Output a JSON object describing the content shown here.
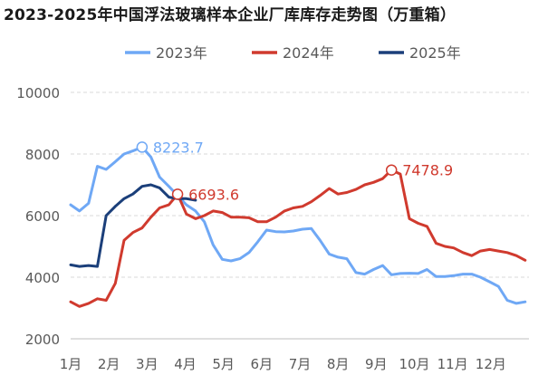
{
  "chart_data": {
    "type": "line",
    "title": "2023-2025年中国浮法玻璃样本企业厂库库存走势图（万重箱）",
    "ylim": [
      2000,
      10000
    ],
    "yticks": [
      2000,
      4000,
      6000,
      8000,
      10000
    ],
    "xlim": [
      1,
      13
    ],
    "xticks": [
      "1月",
      "2月",
      "3月",
      "4月",
      "5月",
      "6月",
      "7月",
      "8月",
      "9月",
      "10月",
      "11月",
      "12月"
    ],
    "grid": "horizontal dashed",
    "legend_position": "top",
    "series": [
      {
        "name": "2023年",
        "color": "#6fa8f5",
        "x": [
          1.0,
          1.23,
          1.47,
          1.7,
          1.93,
          2.17,
          2.4,
          2.63,
          2.87,
          3.1,
          3.33,
          3.57,
          3.8,
          4.03,
          4.27,
          4.5,
          4.73,
          4.97,
          5.2,
          5.43,
          5.67,
          5.9,
          6.13,
          6.37,
          6.6,
          6.83,
          7.07,
          7.3,
          7.53,
          7.77,
          8.0,
          8.23,
          8.47,
          8.7,
          8.93,
          9.17,
          9.4,
          9.63,
          9.87,
          10.1,
          10.33,
          10.57,
          10.8,
          11.03,
          11.27,
          11.5,
          11.73,
          11.97,
          12.2,
          12.43,
          12.67,
          12.9
        ],
        "values": [
          6350,
          6150,
          6400,
          7600,
          7500,
          7750,
          8000,
          8100,
          8223.7,
          7900,
          7250,
          6950,
          6650,
          6350,
          6150,
          5800,
          5050,
          4580,
          4530,
          4600,
          4800,
          5150,
          5530,
          5480,
          5470,
          5500,
          5560,
          5580,
          5200,
          4750,
          4650,
          4600,
          4150,
          4100,
          4250,
          4380,
          4080,
          4120,
          4130,
          4120,
          4250,
          4020,
          4020,
          4050,
          4100,
          4100,
          4000,
          3850,
          3700,
          3250,
          3150,
          3200
        ]
      },
      {
        "name": "2024年",
        "color": "#d03a2e",
        "x": [
          1.0,
          1.23,
          1.47,
          1.7,
          1.93,
          2.17,
          2.4,
          2.63,
          2.87,
          3.1,
          3.33,
          3.57,
          3.8,
          4.03,
          4.27,
          4.5,
          4.73,
          4.97,
          5.2,
          5.43,
          5.67,
          5.9,
          6.13,
          6.37,
          6.6,
          6.83,
          7.07,
          7.3,
          7.53,
          7.77,
          8.0,
          8.23,
          8.47,
          8.7,
          8.93,
          9.17,
          9.4,
          9.63,
          9.87,
          10.1,
          10.33,
          10.57,
          10.8,
          11.03,
          11.27,
          11.5,
          11.73,
          11.97,
          12.2,
          12.43,
          12.67,
          12.9
        ],
        "values": [
          3200,
          3050,
          3150,
          3300,
          3250,
          3800,
          5200,
          5450,
          5600,
          5950,
          6250,
          6350,
          6693.6,
          6050,
          5900,
          6000,
          6150,
          6100,
          5950,
          5950,
          5930,
          5800,
          5800,
          5950,
          6150,
          6250,
          6300,
          6450,
          6650,
          6880,
          6700,
          6750,
          6850,
          7000,
          7080,
          7200,
          7478.9,
          7350,
          5900,
          5750,
          5650,
          5100,
          5000,
          4950,
          4800,
          4700,
          4850,
          4900,
          4850,
          4800,
          4700,
          4550
        ]
      },
      {
        "name": "2025年",
        "color": "#1b3f7a",
        "x": [
          1.0,
          1.23,
          1.47,
          1.7,
          1.93,
          2.17,
          2.4,
          2.63,
          2.87,
          3.1,
          3.33,
          3.57,
          3.8,
          4.03,
          4.27
        ],
        "values": [
          4400,
          4350,
          4380,
          4350,
          6000,
          6300,
          6550,
          6700,
          6950,
          7000,
          6900,
          6600,
          6550,
          6550,
          6500
        ]
      }
    ],
    "annotations": [
      {
        "series": "2023年",
        "x": 2.87,
        "value": 8223.7,
        "label": "8223.7",
        "color": "#6fa8f5"
      },
      {
        "series": "2024年",
        "x": 3.8,
        "value": 6693.6,
        "label": "6693.6",
        "color": "#d03a2e"
      },
      {
        "series": "2024年",
        "x": 9.4,
        "value": 7478.9,
        "label": "7478.9",
        "color": "#d03a2e"
      }
    ]
  }
}
